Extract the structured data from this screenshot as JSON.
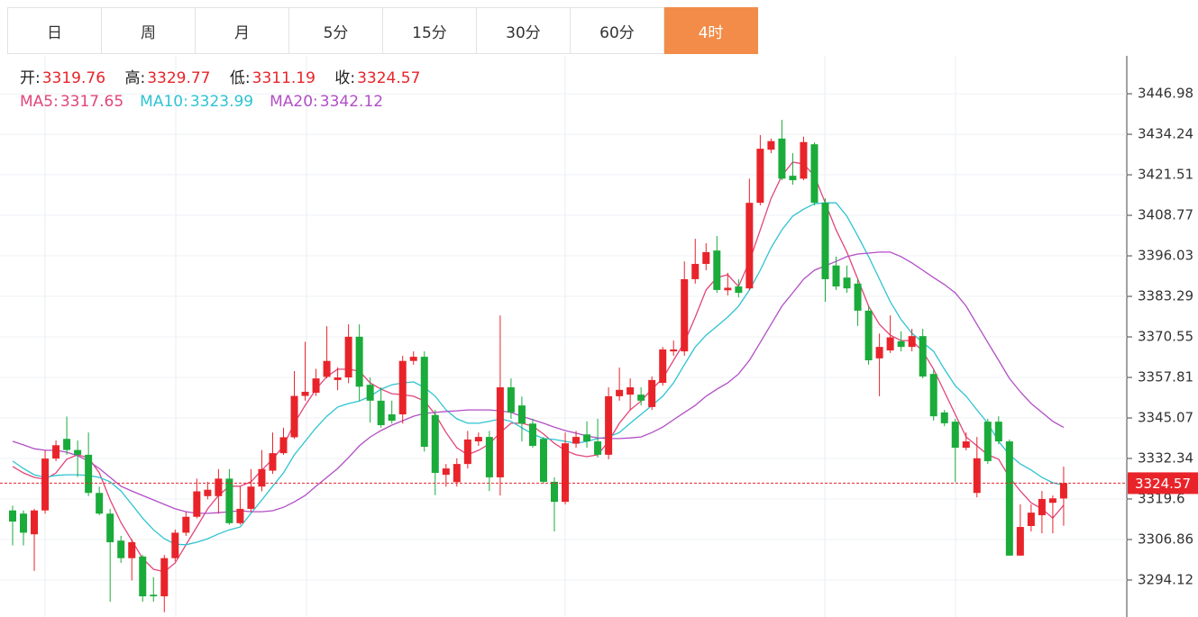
{
  "tabs": {
    "labels": [
      "日",
      "周",
      "月",
      "5分",
      "15分",
      "30分",
      "60分",
      "4时"
    ],
    "active": 7
  },
  "chart_data": {
    "type": "candlestick",
    "ohlc_labels": {
      "open": "开:",
      "high": "高:",
      "low": "低:",
      "close": "收:"
    },
    "up_color": "#e8242a",
    "down_color": "#1aab3a",
    "ylim": [
      3282.5,
      3458.9
    ],
    "yticks": [
      3294.12,
      3306.86,
      3319.6,
      3332.34,
      3345.07,
      3357.81,
      3370.55,
      3383.29,
      3396.03,
      3408.77,
      3421.51,
      3434.24,
      3446.98
    ],
    "grid": true,
    "open": [
      3316,
      3315,
      3308.5,
      3316,
      3332.3,
      3338.5,
      3335,
      3333.5,
      3321.5,
      3315,
      3306.5,
      3301,
      3301.5,
      3289.5,
      3289,
      3301,
      3309,
      3314,
      3320.5,
      3320.5,
      3326,
      3312,
      3316.5,
      3323.5,
      3328.5,
      3334,
      3339,
      3352,
      3353,
      3358,
      3357,
      3357.8,
      3370.6,
      3355.5,
      3350.5,
      3346.2,
      3346.2,
      3363,
      3364.3,
      3346,
      3327.2,
      3324.9,
      3330.6,
      3337.7,
      3339.1,
      3326.4,
      3354.7,
      3349,
      3343.3,
      3338.5,
      3325,
      3318.7,
      3337,
      3339.9,
      3337.7,
      3333.5,
      3351.9,
      3352.4,
      3352.4,
      3348.5,
      3356.1,
      3366,
      3366,
      3388.7,
      3393.5,
      3397.7,
      3385.2,
      3386.4,
      3385.8,
      3412.7,
      3429.4,
      3432.9,
      3421.2,
      3420.3,
      3431.1,
      3412.7,
      3393,
      3389.2,
      3387.3,
      3378.8,
      3363.8,
      3366.3,
      3369.2,
      3367.4,
      3370.8,
      3358.9,
      3346.8,
      3343.9,
      3335.7,
      3321.5,
      3343.9,
      3343.9,
      3337.7,
      3301.8,
      3311.1,
      3314.5,
      3318.4,
      3319.76
    ],
    "high": [
      3317.5,
      3316,
      3316.5,
      3335,
      3338,
      3345.5,
      3338,
      3340.5,
      3323.5,
      3316.5,
      3308,
      3307,
      3302,
      3295,
      3302,
      3310,
      3315.5,
      3326,
      3325,
      3329,
      3329,
      3323.5,
      3329,
      3335,
      3340.5,
      3342,
      3359.8,
      3369,
      3360.5,
      3373.9,
      3361,
      3374.5,
      3374.5,
      3357.8,
      3354.7,
      3350.5,
      3364.6,
      3366,
      3366,
      3347.6,
      3330.6,
      3332.4,
      3341,
      3340.5,
      3341,
      3377.3,
      3357.5,
      3351.8,
      3344.8,
      3339.1,
      3326.4,
      3340.5,
      3341,
      3344,
      3344.8,
      3354.7,
      3360.9,
      3357.5,
      3354.7,
      3358.1,
      3367.4,
      3369.4,
      3394.3,
      3401.4,
      3400,
      3402.3,
      3390.7,
      3388.7,
      3420.3,
      3434,
      3432.9,
      3438.8,
      3428.3,
      3433.5,
      3431.7,
      3414.1,
      3395.8,
      3393,
      3388.7,
      3380.2,
      3371.6,
      3377.3,
      3372.3,
      3373.1,
      3373.1,
      3360.3,
      3347.6,
      3344.8,
      3340.5,
      3339.1,
      3344.8,
      3345.6,
      3338.3,
      3317.9,
      3317.9,
      3322.1,
      3320.7,
      3329.77
    ],
    "low": [
      3305,
      3305,
      3297,
      3315,
      3331.5,
      3333.5,
      3326.5,
      3320.5,
      3314.5,
      3287.3,
      3299.5,
      3294,
      3287.3,
      3287.3,
      3284,
      3300,
      3308,
      3313.5,
      3319.5,
      3315,
      3311.5,
      3311.5,
      3315.5,
      3322,
      3327.5,
      3333.5,
      3338.5,
      3350.5,
      3352,
      3357.5,
      3353.8,
      3356,
      3350.5,
      3343.6,
      3342,
      3343.3,
      3343.3,
      3361.8,
      3334.5,
      3320.8,
      3323.5,
      3323.5,
      3329.2,
      3336.3,
      3322.1,
      3320.7,
      3344.8,
      3337.7,
      3335.7,
      3324.4,
      3309.4,
      3317.9,
      3335.7,
      3335.7,
      3332.6,
      3332.1,
      3350.5,
      3347.6,
      3349,
      3347.6,
      3355.2,
      3364.6,
      3364.6,
      3387.3,
      3391.5,
      3384.4,
      3383.6,
      3383,
      3385.2,
      3411.9,
      3428.3,
      3419.8,
      3418.4,
      3419.8,
      3411.9,
      3381.6,
      3385.3,
      3384.4,
      3374,
      3361.8,
      3351.9,
      3365.5,
      3366,
      3366,
      3357.5,
      3344.2,
      3342.5,
      3324.9,
      3334.9,
      3320.1,
      3330.6,
      3336.8,
      3301.8,
      3301.8,
      3309.4,
      3308.8,
      3308.8,
      3311.19
    ],
    "close": [
      3312.5,
      3309,
      3316,
      3332.3,
      3336.5,
      3335,
      3333.5,
      3321.5,
      3315,
      3306,
      3301,
      3306,
      3289,
      3289,
      3301,
      3309,
      3314,
      3322,
      3322.5,
      3326,
      3312,
      3316.5,
      3323.5,
      3329,
      3334,
      3339,
      3352,
      3353.3,
      3357.5,
      3363,
      3357.8,
      3370.6,
      3354.9,
      3350.5,
      3342.8,
      3344.2,
      3363,
      3364.3,
      3336,
      3327.8,
      3329.2,
      3330.6,
      3338.3,
      3339.1,
      3326.4,
      3354.7,
      3346.8,
      3343.3,
      3336.3,
      3325,
      3318.7,
      3337.1,
      3339.1,
      3337.7,
      3333.5,
      3351.9,
      3353.9,
      3354.7,
      3350.5,
      3357,
      3366.6,
      3366.6,
      3388.7,
      3393.5,
      3397.2,
      3385.3,
      3386,
      3384.4,
      3412.7,
      3429.7,
      3432.1,
      3420.3,
      3419.8,
      3431.8,
      3412.7,
      3388.7,
      3386.4,
      3385.8,
      3378.8,
      3363.2,
      3367.4,
      3370.4,
      3367.4,
      3370.8,
      3358.1,
      3345.6,
      3343.4,
      3335.7,
      3337.7,
      3332.4,
      3331.5,
      3337.7,
      3301.8,
      3310.8,
      3315.3,
      3319.6,
      3319.8,
      3324.57
    ],
    "series": [
      {
        "name": "MA5:",
        "color": "#e2457a",
        "values": [
          3329.8,
          3327.8,
          3326.4,
          3325.8,
          3327.8,
          3332.1,
          3333.5,
          3332.6,
          3327.8,
          3319.3,
          3312.2,
          3306.6,
          3300.9,
          3297.5,
          3296.7,
          3299.5,
          3305.2,
          3310.8,
          3316.5,
          3320.7,
          3323.6,
          3323.6,
          3325.0,
          3328.7,
          3332.1,
          3336.3,
          3343.4,
          3349.0,
          3354.1,
          3358.1,
          3360.4,
          3360.4,
          3359.8,
          3356.1,
          3354.1,
          3352.7,
          3352.4,
          3351.9,
          3350.4,
          3346.2,
          3340.5,
          3335.7,
          3333.5,
          3334.9,
          3336.9,
          3340.5,
          3343.4,
          3343.4,
          3342.5,
          3340.0,
          3337.1,
          3334.9,
          3333.5,
          3332.9,
          3333.5,
          3337.7,
          3343.4,
          3347.6,
          3350.4,
          3354.1,
          3357.5,
          3363.2,
          3368.8,
          3376.8,
          3385.3,
          3389.2,
          3390.1,
          3386.4,
          3394.3,
          3404.2,
          3414.1,
          3421.2,
          3425.5,
          3424.9,
          3421.2,
          3412.7,
          3404.2,
          3397.2,
          3388.7,
          3380.2,
          3374.5,
          3371.1,
          3369.4,
          3369.4,
          3366.0,
          3360.4,
          3353.3,
          3346.2,
          3339.1,
          3336.3,
          3333.5,
          3332.1,
          3326.4,
          3322.1,
          3318.4,
          3316.5,
          3313.6,
          3317.65
        ]
      },
      {
        "name": "MA10:",
        "color": "#2ec3d2",
        "values": [
          3331.5,
          3329.2,
          3327.2,
          3326.4,
          3327.0,
          3327.2,
          3327.2,
          3327.0,
          3326.4,
          3325.0,
          3322.1,
          3317.9,
          3313.6,
          3309.9,
          3307.1,
          3305.4,
          3305.2,
          3306.0,
          3307.1,
          3308.6,
          3309.9,
          3310.8,
          3315.1,
          3319.3,
          3323.6,
          3327.8,
          3333.5,
          3337.7,
          3342.0,
          3345.6,
          3348.5,
          3349.6,
          3350.4,
          3351.9,
          3354.1,
          3355.5,
          3356.1,
          3356.4,
          3354.7,
          3351.9,
          3347.6,
          3344.8,
          3343.4,
          3343.4,
          3344.0,
          3344.8,
          3344.0,
          3342.0,
          3340.0,
          3338.6,
          3338.3,
          3337.7,
          3337.1,
          3337.7,
          3338.6,
          3339.1,
          3340.5,
          3343.4,
          3346.2,
          3349.0,
          3351.9,
          3356.1,
          3361.8,
          3367.4,
          3371.1,
          3373.9,
          3376.8,
          3380.2,
          3385.3,
          3391.5,
          3398.6,
          3404.2,
          3408.5,
          3410.7,
          3412.4,
          3412.7,
          3412.7,
          3408.5,
          3402.3,
          3395.8,
          3388.7,
          3381.6,
          3376.0,
          3371.7,
          3368.8,
          3366.0,
          3360.4,
          3355.2,
          3351.9,
          3347.6,
          3343.4,
          3337.7,
          3333.5,
          3330.6,
          3328.7,
          3326.4,
          3324.7,
          3323.99
        ]
      },
      {
        "name": "MA20:",
        "color": "#b24ec6",
        "values": [
          3337.7,
          3336.6,
          3335.4,
          3334.9,
          3334.9,
          3334.3,
          3333.2,
          3331.5,
          3329.2,
          3326.4,
          3323.6,
          3322.1,
          3320.7,
          3319.3,
          3317.9,
          3316.5,
          3315.6,
          3315.1,
          3315.1,
          3315.3,
          3315.6,
          3315.9,
          3315.6,
          3315.6,
          3315.9,
          3317.0,
          3318.7,
          3320.7,
          3323.6,
          3326.4,
          3329.2,
          3332.6,
          3336.3,
          3339.1,
          3341.1,
          3342.8,
          3344.2,
          3345.6,
          3346.5,
          3346.8,
          3347.1,
          3347.3,
          3347.6,
          3347.6,
          3347.6,
          3347.3,
          3346.8,
          3345.6,
          3344.5,
          3343.4,
          3342.2,
          3341.1,
          3340.3,
          3339.4,
          3338.8,
          3338.6,
          3338.6,
          3338.8,
          3339.1,
          3340.5,
          3342.2,
          3344.5,
          3346.8,
          3349.0,
          3351.9,
          3354.1,
          3356.1,
          3358.9,
          3363.2,
          3368.8,
          3374.5,
          3380.2,
          3384.4,
          3388.7,
          3391.5,
          3392.9,
          3394.3,
          3395.8,
          3396.6,
          3396.9,
          3397.2,
          3397.2,
          3395.8,
          3393.8,
          3391.5,
          3389.2,
          3387.0,
          3384.4,
          3380.2,
          3374.5,
          3368.8,
          3363.2,
          3357.5,
          3353.3,
          3349.6,
          3346.8,
          3344.0,
          3342.12
        ]
      }
    ]
  }
}
